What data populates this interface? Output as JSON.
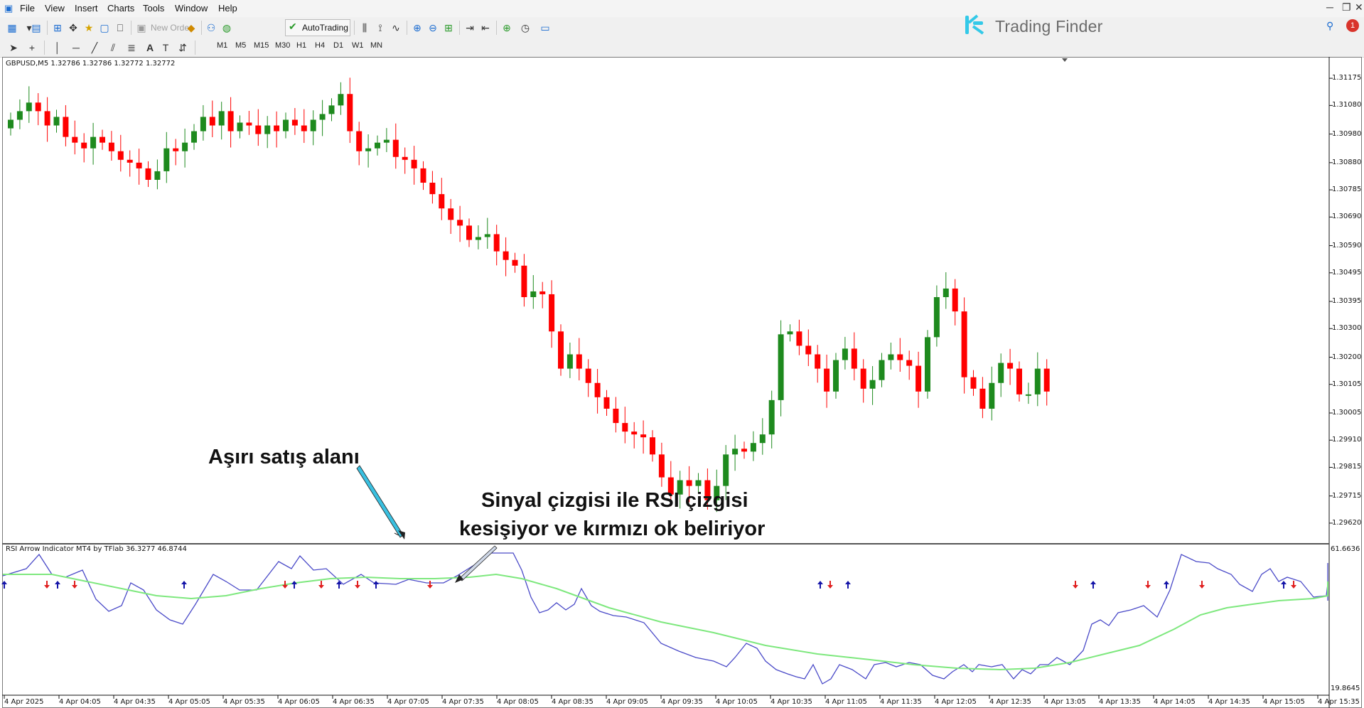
{
  "menu": [
    "File",
    "View",
    "Insert",
    "Charts",
    "Tools",
    "Window",
    "Help"
  ],
  "toolbar": {
    "new_order": "New Order",
    "autotrading": "AutoTrading",
    "timeframes": [
      "M1",
      "M5",
      "M15",
      "M30",
      "H1",
      "H4",
      "D1",
      "W1",
      "MN"
    ]
  },
  "brand": {
    "name": "Trading Finder"
  },
  "notification_count": "1",
  "main_chart": {
    "header": "GBPUSD,M5  1.32786 1.32786 1.32772 1.32772",
    "price_levels": [
      "1.31175",
      "1.31080",
      "1.30980",
      "1.30880",
      "1.30785",
      "1.30690",
      "1.30590",
      "1.30495",
      "1.30395",
      "1.30300",
      "1.30200",
      "1.30105",
      "1.30005",
      "1.29910",
      "1.29815",
      "1.29715",
      "1.29620"
    ],
    "bull_color": "#1e8a1e",
    "bear_color": "#ff0000"
  },
  "indicator": {
    "header": "RSI Arrow Indicator MT4 by TFlab 36.3277 46.8744",
    "level_top": "61.6636",
    "level_bottom": "19.8645",
    "rsi_color": "#4a4ac8",
    "signal_color": "#7ee87e"
  },
  "time_labels": [
    "4 Apr 2025",
    "4 Apr 04:05",
    "4 Apr 04:35",
    "4 Apr 05:05",
    "4 Apr 05:35",
    "4 Apr 06:05",
    "4 Apr 06:35",
    "4 Apr 07:05",
    "4 Apr 07:35",
    "4 Apr 08:05",
    "4 Apr 08:35",
    "4 Apr 09:05",
    "4 Apr 09:35",
    "4 Apr 10:05",
    "4 Apr 10:35",
    "4 Apr 11:05",
    "4 Apr 11:35",
    "4 Apr 12:05",
    "4 Apr 12:35",
    "4 Apr 13:05",
    "4 Apr 13:35",
    "4 Apr 14:05",
    "4 Apr 14:35",
    "4 Apr 15:05",
    "4 Apr 15:35"
  ],
  "annotations": {
    "oversold": "Aşırı satış alanı",
    "cross_line1": "Sinyal çizgisi ile RSI çizgisi",
    "cross_line2": "kesişiyor ve kırmızı ok beliriyor"
  },
  "chart_data": [
    {
      "type": "candlestick",
      "title": "GBPUSD,M5",
      "series": [
        {
          "name": "GBPUSD,M5",
          "ohlc_close_last": [
            1.32786,
            1.32786,
            1.32772,
            1.32772
          ]
        }
      ],
      "ylim": [
        1.2959,
        1.3122
      ],
      "y_ticks": [
        1.31175,
        1.3108,
        1.3098,
        1.3088,
        1.30785,
        1.3069,
        1.3059,
        1.30495,
        1.30395,
        1.303,
        1.302,
        1.30105,
        1.30005,
        1.2991,
        1.29815,
        1.29715,
        1.2962
      ],
      "closes": [
        1.3103,
        1.3106,
        1.3109,
        1.3106,
        1.3101,
        1.3104,
        1.3097,
        1.3095,
        1.3093,
        1.3097,
        1.3095,
        1.3092,
        1.3089,
        1.3088,
        1.3086,
        1.3082,
        1.3085,
        1.3093,
        1.3092,
        1.3095,
        1.3099,
        1.3104,
        1.3101,
        1.3106,
        1.3099,
        1.3102,
        1.3101,
        1.3098,
        1.3101,
        1.3099,
        1.3103,
        1.3101,
        1.3099,
        1.3103,
        1.3105,
        1.3108,
        1.3112,
        1.3099,
        1.3092,
        1.3093,
        1.3095,
        1.3096,
        1.309,
        1.3089,
        1.3086,
        1.3081,
        1.3077,
        1.3072,
        1.3068,
        1.3066,
        1.3061,
        1.3062,
        1.3063,
        1.3057,
        1.3054,
        1.3052,
        1.3041,
        1.3043,
        1.3042,
        1.3029,
        1.3016,
        1.3021,
        1.3016,
        1.3011,
        1.3006,
        1.3002,
        1.2997,
        1.2994,
        1.2993,
        1.2992,
        1.2986,
        1.2978,
        1.2972,
        1.2977,
        1.2975,
        1.2977,
        1.297,
        1.2975,
        1.2986,
        1.2988,
        1.2987,
        1.299,
        1.2993,
        1.3005,
        1.3028,
        1.3029,
        1.3024,
        1.3021,
        1.3016,
        1.3008,
        1.3019,
        1.3023,
        1.3016,
        1.3009,
        1.3012,
        1.3019,
        1.3021,
        1.3019,
        1.3017,
        1.3008,
        1.3027,
        1.3041,
        1.3044,
        1.3036,
        1.3013,
        1.3009,
        1.3002,
        1.3011,
        1.3018,
        1.3016,
        1.3007,
        1.3007,
        1.3016,
        1.3008
      ]
    },
    {
      "type": "line",
      "title": "RSI Arrow Indicator MT4 by TFlab",
      "series": [
        {
          "name": "RSI",
          "last_value": 36.3277
        },
        {
          "name": "Signal",
          "last_value": 46.8744
        }
      ],
      "ylim": [
        19.8645,
        61.6636
      ]
    }
  ]
}
